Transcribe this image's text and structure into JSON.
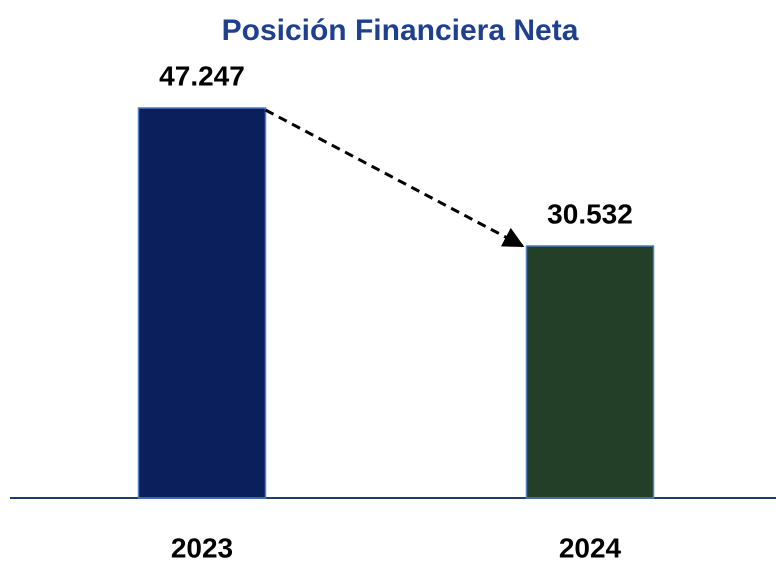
{
  "chart_data": {
    "type": "bar",
    "title": "Posición Financiera Neta",
    "categories": [
      "2023",
      "2024"
    ],
    "values": [
      47247,
      30532
    ],
    "value_labels": [
      "47.247",
      "30.532"
    ],
    "colors": [
      "#0b1f5c",
      "#233f27"
    ]
  }
}
